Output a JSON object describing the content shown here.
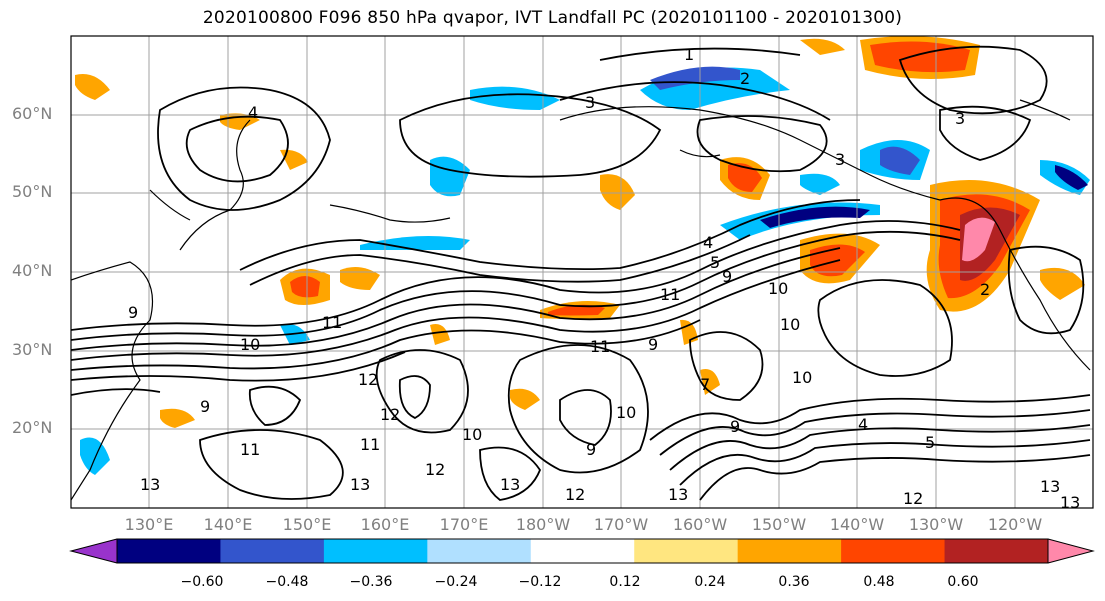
{
  "title": "2020100800 F096 850 hPa qvapor, IVT Landfall PC (2020101100 - 2020101300)",
  "lat_labels": [
    "60°N",
    "50°N",
    "40°N",
    "30°N",
    "20°N"
  ],
  "lon_labels": [
    "130°E",
    "140°E",
    "150°E",
    "160°E",
    "170°E",
    "180°W",
    "170°W",
    "160°W",
    "150°W",
    "140°W",
    "130°W",
    "120°W"
  ],
  "colorbar": {
    "ticks": [
      "−0.60",
      "−0.48",
      "−0.36",
      "−0.24",
      "−0.12",
      "0.12",
      "0.24",
      "0.36",
      "0.48",
      "0.60"
    ],
    "colors": [
      "#9933cc",
      "#000080",
      "#3355cc",
      "#00bfff",
      "#b0e0ff",
      "#ffffff",
      "#ffe680",
      "#ffa500",
      "#ff4500",
      "#b22222",
      "#ff88aa"
    ]
  },
  "contour_labels": [
    "1",
    "2",
    "3",
    "4",
    "3",
    "3",
    "4",
    "5",
    "9",
    "10",
    "11",
    "10",
    "11",
    "12",
    "12",
    "13",
    "11",
    "9",
    "10",
    "11",
    "12",
    "13",
    "10",
    "9",
    "13",
    "10",
    "5",
    "4",
    "12",
    "13",
    "13",
    "9",
    "9",
    "10",
    "12",
    "13",
    "2",
    "11",
    "7",
    "9"
  ]
}
